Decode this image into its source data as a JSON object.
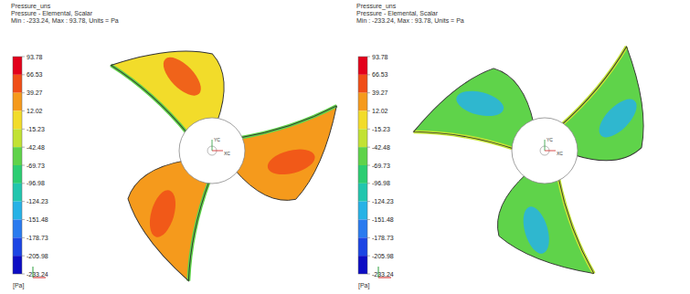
{
  "chart_data": [
    {
      "type": "contour",
      "title": "Pressure_uns",
      "subtitle": "Pressure - Elemental, Scalar",
      "annotations": [
        "Min : -233.24, Max : 93.78, Units = Pa"
      ],
      "colorbar": {
        "range": [
          -233.24,
          93.78
        ],
        "ticks": [
          93.78,
          66.53,
          39.27,
          12.02,
          -15.23,
          -42.48,
          -69.73,
          -96.98,
          -124.23,
          -151.48,
          -178.73,
          -205.98,
          -233.24
        ],
        "label": "[Pa]",
        "colors": [
          "#e3001b",
          "#f04e17",
          "#f59a1c",
          "#f2dc2a",
          "#c2e233",
          "#5fd34a",
          "#2ccd72",
          "#22c6ae",
          "#27b2e6",
          "#2a7bef",
          "#1c45e4",
          "#0d0dc4"
        ]
      },
      "triad": {
        "labels": [
          "YC",
          "XC"
        ]
      },
      "values": [
        5,
        30,
        28
      ],
      "edge_values": [
        -60,
        -60,
        -60
      ],
      "patch_values": [
        50,
        55,
        50
      ]
    },
    {
      "type": "contour",
      "title": "Pressure_uns",
      "subtitle": "Pressure - Elemental, Scalar",
      "annotations": [
        "Min : -233.24, Max : 93.78, Units = Pa"
      ],
      "colorbar": {
        "range": [
          -233.24,
          93.78
        ],
        "ticks": [
          93.78,
          66.53,
          39.27,
          12.02,
          -15.23,
          -42.48,
          -69.73,
          -96.98,
          -124.23,
          -151.48,
          -178.73,
          -205.98,
          -233.24
        ],
        "label": "[Pa]",
        "colors": [
          "#e3001b",
          "#f04e17",
          "#f59a1c",
          "#f2dc2a",
          "#c2e233",
          "#5fd34a",
          "#2ccd72",
          "#22c6ae",
          "#27b2e6",
          "#2a7bef",
          "#1c45e4",
          "#0d0dc4"
        ]
      },
      "triad": {
        "labels": [
          "YC",
          "XC"
        ]
      },
      "values": [
        -55,
        -55,
        -55
      ],
      "edge_values": [
        -25,
        -25,
        -25
      ],
      "patch_values": [
        -140,
        -135,
        -140
      ]
    }
  ]
}
